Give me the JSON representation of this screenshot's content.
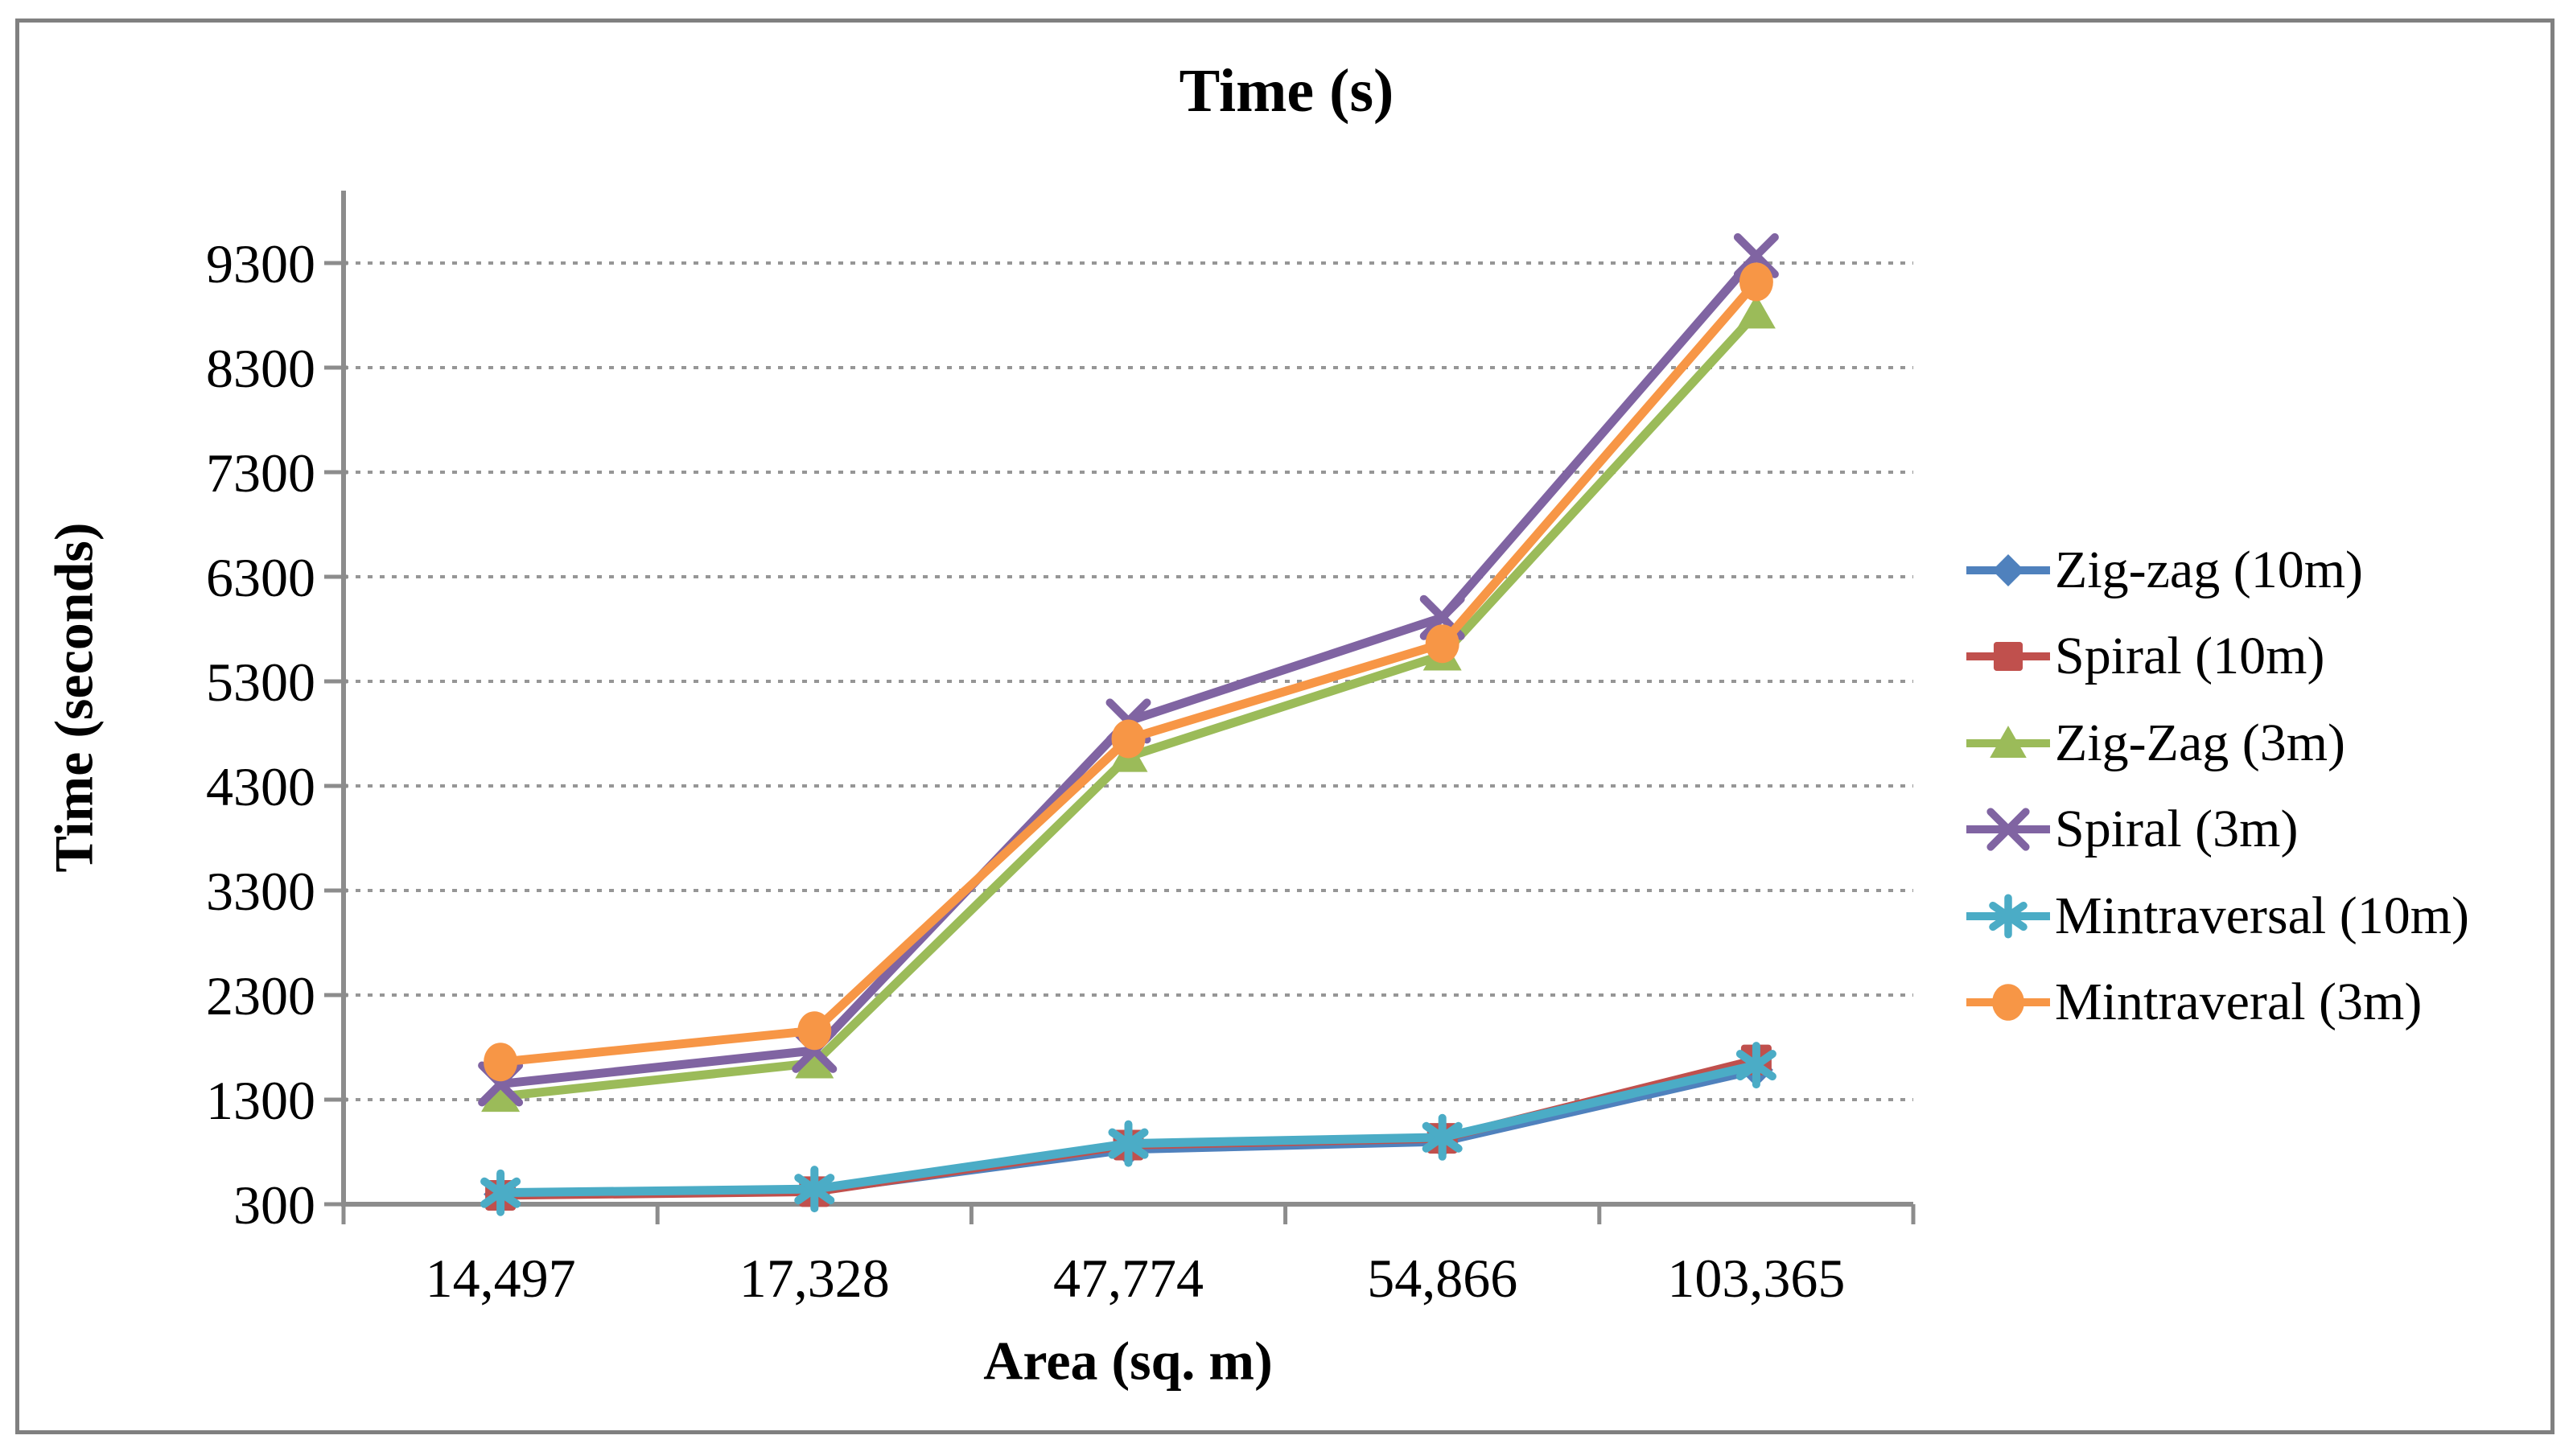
{
  "figure": {
    "border_color": "#808080"
  },
  "colors": {
    "axis": "#8C8C8C",
    "grid": "#969696",
    "text": "#000000",
    "background": "#FFFFFF"
  },
  "chart_data": {
    "type": "line",
    "title": "Time (s)",
    "xlabel": "Area (sq. m)",
    "ylabel": "Time (seconds)",
    "categories": [
      "14,497",
      "17,328",
      "47,774",
      "54,866",
      "103,365"
    ],
    "y_ticks": [
      300,
      1300,
      2300,
      3300,
      4300,
      5300,
      6300,
      7300,
      8300,
      9300
    ],
    "ylim": [
      300,
      10000
    ],
    "grid": "horizontal-dashed",
    "legend_position": "right",
    "series": [
      {
        "name": "Zig-zag (10m)",
        "color": "#4F81BD",
        "marker": "diamond",
        "values": [
          395,
          430,
          825,
          900,
          1585
        ]
      },
      {
        "name": "Spiral (10m)",
        "color": "#C0504D",
        "marker": "square",
        "values": [
          385,
          420,
          865,
          930,
          1680
        ]
      },
      {
        "name": "Zig-Zag (3m)",
        "color": "#9BBB59",
        "marker": "triangle",
        "values": [
          1330,
          1650,
          4580,
          5550,
          8820
        ]
      },
      {
        "name": "Spiral (3m)",
        "color": "#8064A2",
        "marker": "x",
        "values": [
          1450,
          1770,
          4920,
          5910,
          9370
        ]
      },
      {
        "name": "Mintraversal (10m)",
        "color": "#4BACC6",
        "marker": "asterisk",
        "values": [
          410,
          445,
          880,
          940,
          1630
        ]
      },
      {
        "name": "Mintraveral (3m)",
        "color": "#F79646",
        "marker": "circle",
        "values": [
          1660,
          1960,
          4750,
          5660,
          9120
        ]
      }
    ]
  }
}
